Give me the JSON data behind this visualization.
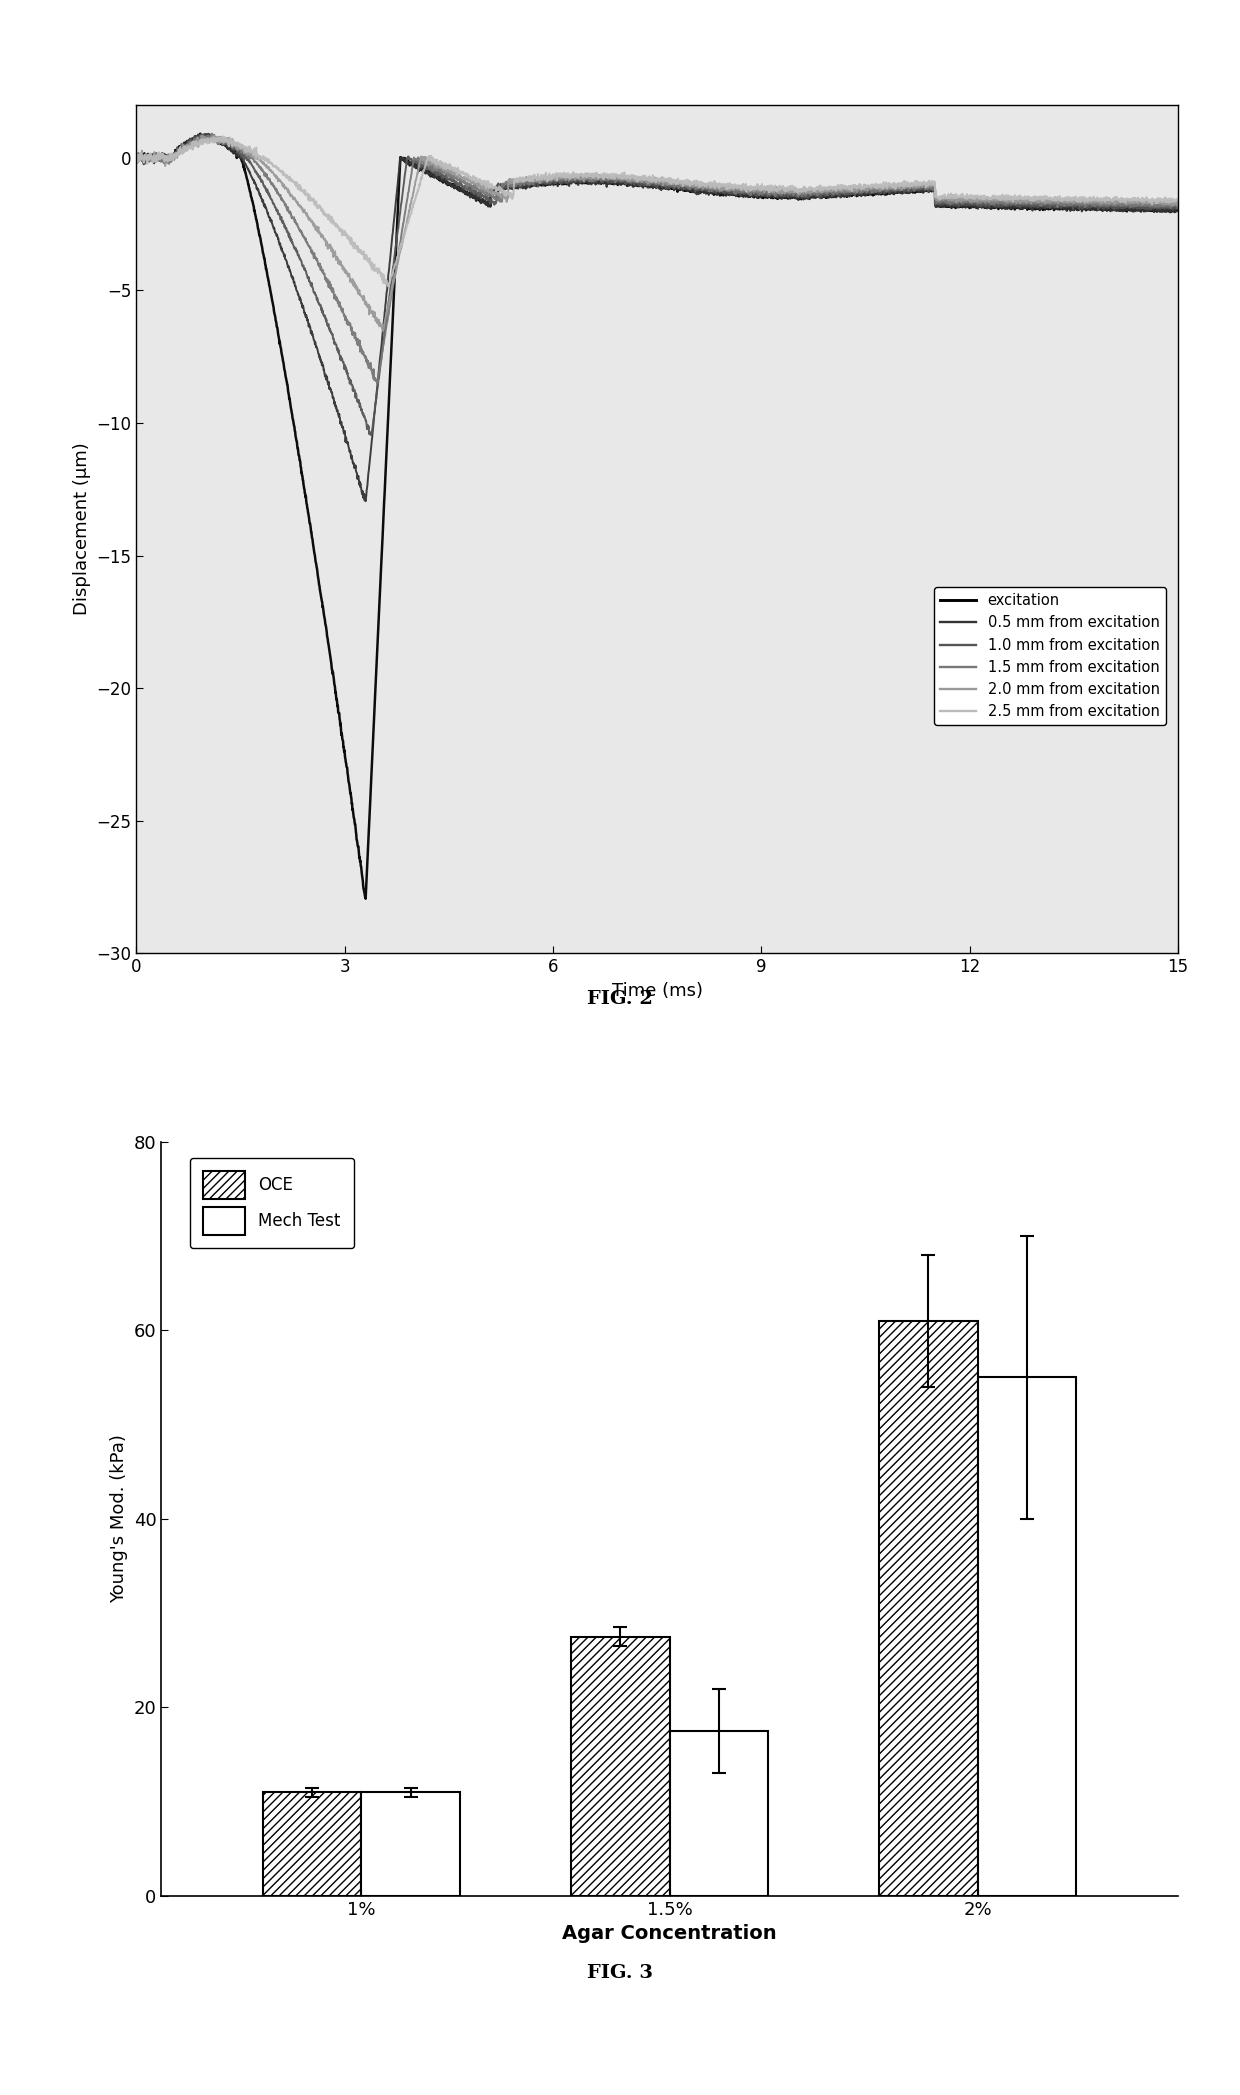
{
  "fig2": {
    "title": "FIG. 2",
    "xlabel": "Time (ms)",
    "ylabel": "Displacement (μm)",
    "xlim": [
      0,
      15
    ],
    "ylim": [
      -30,
      2
    ],
    "xticks": [
      0,
      3,
      6,
      9,
      12,
      15
    ],
    "yticks": [
      0,
      -5,
      -10,
      -15,
      -20,
      -25,
      -30
    ],
    "legend_labels": [
      "excitation",
      "0.5 mm from excitation",
      "1.0 mm from excitation",
      "1.5 mm from excitation",
      "2.0 mm from excitation",
      "2.5 mm from excitation"
    ],
    "line_colors": [
      "#000000",
      "#333333",
      "#555555",
      "#777777",
      "#999999",
      "#bbbbbb"
    ],
    "line_widths": [
      1.8,
      1.4,
      1.4,
      1.4,
      1.4,
      1.4
    ],
    "background_color": "#e8e8e8"
  },
  "fig3": {
    "title": "FIG. 3",
    "xlabel": "Agar Concentration",
    "ylabel": "Young's Mod. (kPa)",
    "ylim": [
      0,
      80
    ],
    "yticks": [
      0,
      20,
      40,
      60,
      80
    ],
    "categories": [
      "1%",
      "1.5%",
      "2%"
    ],
    "oce_values": [
      11.0,
      27.5,
      61.0
    ],
    "oce_errors": [
      0.5,
      1.0,
      7.0
    ],
    "mech_values": [
      11.0,
      17.5,
      55.0
    ],
    "mech_errors": [
      0.5,
      4.5,
      15.0
    ],
    "legend_labels": [
      "OCE",
      "Mech Test"
    ],
    "bar_width": 0.32
  }
}
